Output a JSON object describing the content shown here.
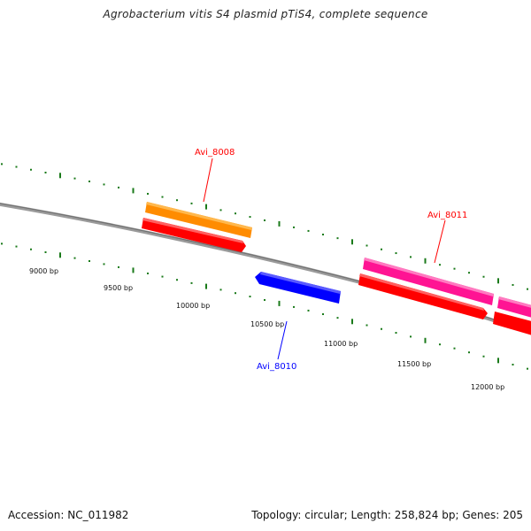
{
  "title": "Agrobacterium vitis S4 plasmid pTiS4, complete sequence",
  "footer": {
    "accession": "Accession: NC_011982",
    "summary": "Topology: circular; Length: 258,824 bp; Genes: 205"
  },
  "colors": {
    "backbone": "#8a8a8a",
    "ticks": "#1a7a1a",
    "orange": "#ff8c00",
    "red": "#ff0000",
    "magenta": "#ff1493",
    "blue": "#0000ff"
  },
  "scale": {
    "ticks": [
      {
        "label": "9000 bp"
      },
      {
        "label": "9500 bp"
      },
      {
        "label": "10000 bp"
      },
      {
        "label": "10500 bp"
      },
      {
        "label": "11000 bp"
      },
      {
        "label": "11500 bp"
      },
      {
        "label": "12000 bp"
      }
    ]
  },
  "genes": [
    {
      "label": "Avi_8008",
      "color": "#ff0000"
    },
    {
      "label": "Avi_8011",
      "color": "#ff0000"
    },
    {
      "label": "Avi_8010",
      "color": "#0000ff"
    }
  ]
}
